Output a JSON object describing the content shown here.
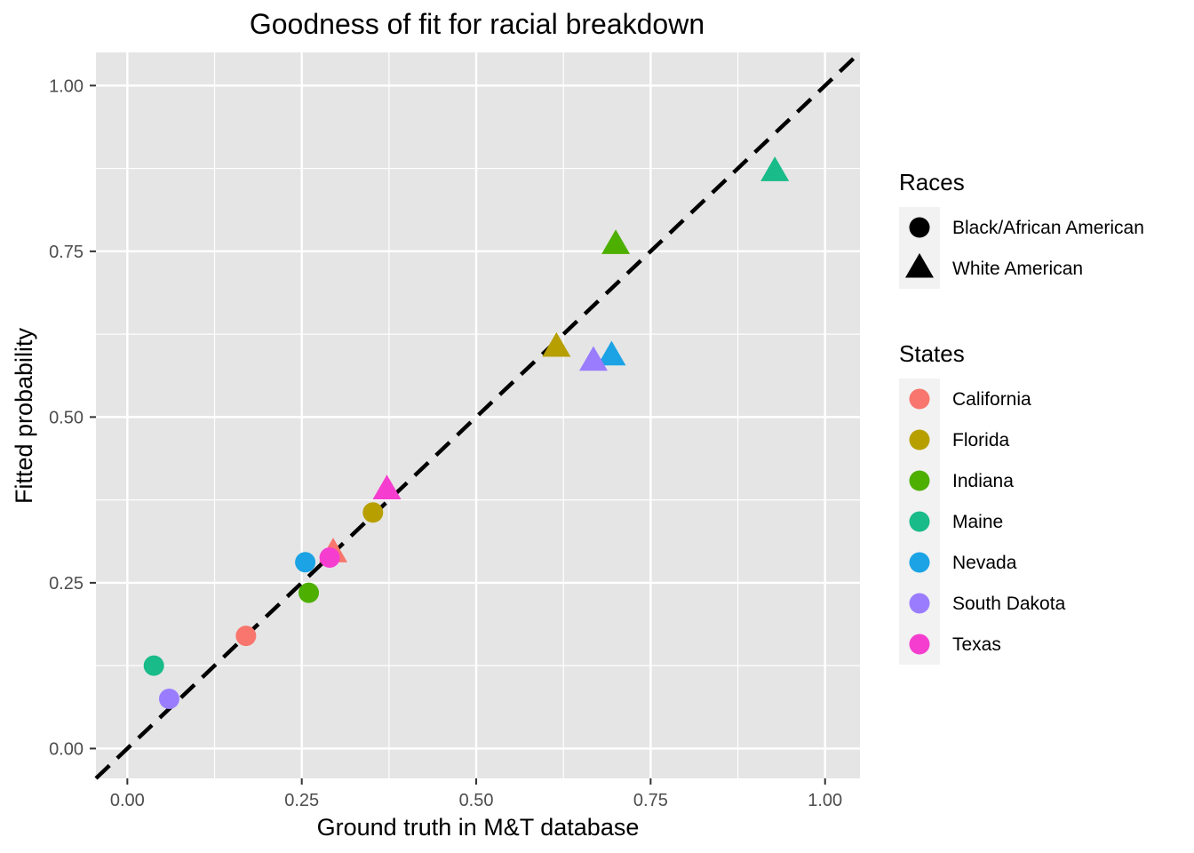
{
  "chart_data": {
    "type": "scatter",
    "title": "Goodness of fit for racial breakdown",
    "xlabel": "Ground truth in M&T database",
    "ylabel": "Fitted probability",
    "xlim": [
      -0.045,
      1.05
    ],
    "ylim": [
      -0.045,
      1.05
    ],
    "x_ticks": [
      0.0,
      0.25,
      0.5,
      0.75,
      1.0
    ],
    "y_ticks": [
      0.0,
      0.25,
      0.5,
      0.75,
      1.0
    ],
    "x_tick_labels": [
      "0.00",
      "0.25",
      "0.50",
      "0.75",
      "1.00"
    ],
    "y_tick_labels": [
      "0.00",
      "0.25",
      "0.50",
      "0.75",
      "1.00"
    ],
    "grid": true,
    "reference_line": {
      "slope": 1,
      "intercept": 0,
      "style": "dashed",
      "color": "#000000"
    },
    "legend_races": {
      "title": "Races",
      "entries": [
        {
          "name": "Black/African American",
          "shape": "circle"
        },
        {
          "name": "White American",
          "shape": "triangle"
        }
      ]
    },
    "legend_states": {
      "title": "States",
      "entries": [
        {
          "name": "California",
          "color": "#F8766D"
        },
        {
          "name": "Florida",
          "color": "#B79F00"
        },
        {
          "name": "Indiana",
          "color": "#4DAF00"
        },
        {
          "name": "Maine",
          "color": "#19BB88"
        },
        {
          "name": "Nevada",
          "color": "#1BA3E5"
        },
        {
          "name": "South Dakota",
          "color": "#9A7DFF"
        },
        {
          "name": "Texas",
          "color": "#F53ECF"
        }
      ]
    },
    "points": [
      {
        "state": "California",
        "race": "Black/African American",
        "x": 0.17,
        "y": 0.17
      },
      {
        "state": "California",
        "race": "White American",
        "x": 0.295,
        "y": 0.295
      },
      {
        "state": "Florida",
        "race": "Black/African American",
        "x": 0.352,
        "y": 0.356
      },
      {
        "state": "Florida",
        "race": "White American",
        "x": 0.615,
        "y": 0.605
      },
      {
        "state": "Indiana",
        "race": "Black/African American",
        "x": 0.26,
        "y": 0.235
      },
      {
        "state": "Indiana",
        "race": "White American",
        "x": 0.7,
        "y": 0.76
      },
      {
        "state": "Maine",
        "race": "Black/African American",
        "x": 0.038,
        "y": 0.125
      },
      {
        "state": "Maine",
        "race": "White American",
        "x": 0.928,
        "y": 0.87
      },
      {
        "state": "Nevada",
        "race": "Black/African American",
        "x": 0.255,
        "y": 0.281
      },
      {
        "state": "Nevada",
        "race": "White American",
        "x": 0.694,
        "y": 0.592
      },
      {
        "state": "South Dakota",
        "race": "Black/African American",
        "x": 0.06,
        "y": 0.075
      },
      {
        "state": "South Dakota",
        "race": "White American",
        "x": 0.668,
        "y": 0.584
      },
      {
        "state": "Texas",
        "race": "Black/African American",
        "x": 0.29,
        "y": 0.288
      },
      {
        "state": "Texas",
        "race": "White American",
        "x": 0.372,
        "y": 0.39
      }
    ]
  }
}
